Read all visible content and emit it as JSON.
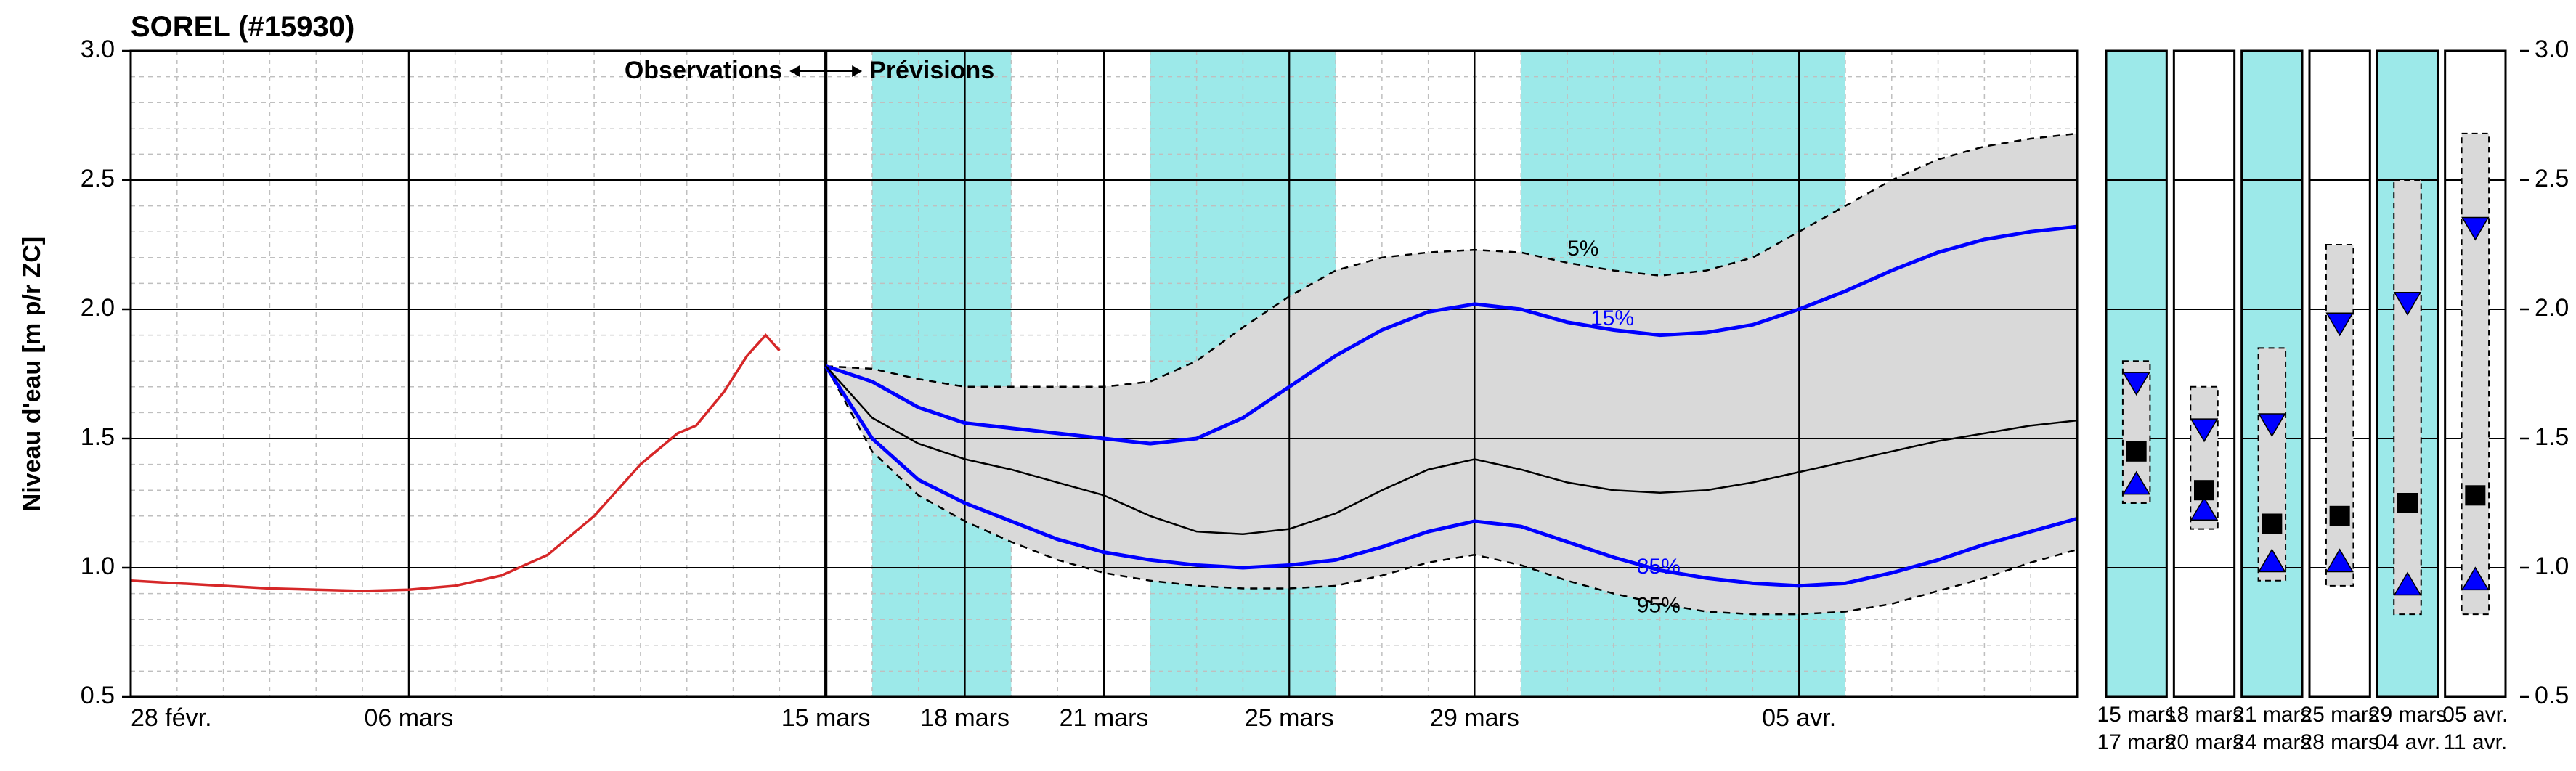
{
  "title": "SOREL (#15930)",
  "sections": {
    "obs": "Observations",
    "prev": "Prévisions"
  },
  "ylabel": "Niveau d'eau [m p/r ZC]",
  "ylim": [
    0.5,
    3.0
  ],
  "yticks": [
    0.5,
    1.0,
    1.5,
    2.0,
    2.5,
    3.0
  ],
  "y_minor_step": 0.1,
  "colors": {
    "bg": "#ffffff",
    "panel_fill": "#ffffff",
    "cyan": "#9ce9e9",
    "grid_minor": "#bfbfbf",
    "grid_major": "#000000",
    "axis": "#000000",
    "text": "#000000",
    "obs_line": "#d62728",
    "median_line": "#000000",
    "pct_line": "#0000ff",
    "band_fill": "#d9d9d9",
    "band_stroke": "#000000",
    "marker_tri": "#0000ff",
    "marker_sq": "#000000"
  },
  "fonts": {
    "title": 40,
    "section": 34,
    "axis_label": 34,
    "tick": 34,
    "tick_small": 30,
    "series_label": 30
  },
  "main": {
    "x_domain_days": 42,
    "obs_split_day": 15,
    "x_ticks": [
      {
        "day": 0,
        "label": "28 févr."
      },
      {
        "day": 6,
        "label": "06 mars"
      },
      {
        "day": 15,
        "label": "15 mars"
      },
      {
        "day": 18,
        "label": "18 mars"
      },
      {
        "day": 21,
        "label": "21 mars"
      },
      {
        "day": 25,
        "label": "25 mars"
      },
      {
        "day": 29,
        "label": "29 mars"
      },
      {
        "day": 36,
        "label": "05 avr."
      }
    ],
    "x_minor_step": 1,
    "cyan_bands": [
      [
        16,
        19
      ],
      [
        22,
        26
      ],
      [
        30,
        37
      ]
    ],
    "obs_line": [
      [
        0,
        0.95
      ],
      [
        1,
        0.94
      ],
      [
        2,
        0.93
      ],
      [
        3,
        0.92
      ],
      [
        4,
        0.915
      ],
      [
        5,
        0.91
      ],
      [
        6,
        0.915
      ],
      [
        7,
        0.93
      ],
      [
        8,
        0.97
      ],
      [
        9,
        1.05
      ],
      [
        10,
        1.2
      ],
      [
        11,
        1.4
      ],
      [
        11.8,
        1.52
      ],
      [
        12.2,
        1.55
      ],
      [
        12.8,
        1.68
      ],
      [
        13.3,
        1.82
      ],
      [
        13.7,
        1.9
      ],
      [
        14.0,
        1.84
      ]
    ],
    "p5": [
      [
        15,
        1.78
      ],
      [
        16,
        1.77
      ],
      [
        17,
        1.73
      ],
      [
        18,
        1.7
      ],
      [
        19,
        1.7
      ],
      [
        20,
        1.7
      ],
      [
        21,
        1.7
      ],
      [
        22,
        1.72
      ],
      [
        23,
        1.8
      ],
      [
        24,
        1.93
      ],
      [
        25,
        2.05
      ],
      [
        26,
        2.15
      ],
      [
        27,
        2.2
      ],
      [
        28,
        2.22
      ],
      [
        29,
        2.23
      ],
      [
        30,
        2.22
      ],
      [
        31,
        2.18
      ],
      [
        32,
        2.15
      ],
      [
        33,
        2.13
      ],
      [
        34,
        2.15
      ],
      [
        35,
        2.2
      ],
      [
        36,
        2.3
      ],
      [
        37,
        2.4
      ],
      [
        38,
        2.5
      ],
      [
        39,
        2.58
      ],
      [
        40,
        2.63
      ],
      [
        41,
        2.66
      ],
      [
        42,
        2.68
      ]
    ],
    "p15": [
      [
        15,
        1.78
      ],
      [
        16,
        1.72
      ],
      [
        17,
        1.62
      ],
      [
        18,
        1.56
      ],
      [
        19,
        1.54
      ],
      [
        20,
        1.52
      ],
      [
        21,
        1.5
      ],
      [
        22,
        1.48
      ],
      [
        23,
        1.5
      ],
      [
        24,
        1.58
      ],
      [
        25,
        1.7
      ],
      [
        26,
        1.82
      ],
      [
        27,
        1.92
      ],
      [
        28,
        1.99
      ],
      [
        29,
        2.02
      ],
      [
        30,
        2.0
      ],
      [
        31,
        1.95
      ],
      [
        32,
        1.92
      ],
      [
        33,
        1.9
      ],
      [
        34,
        1.91
      ],
      [
        35,
        1.94
      ],
      [
        36,
        2.0
      ],
      [
        37,
        2.07
      ],
      [
        38,
        2.15
      ],
      [
        39,
        2.22
      ],
      [
        40,
        2.27
      ],
      [
        41,
        2.3
      ],
      [
        42,
        2.32
      ]
    ],
    "median": [
      [
        15,
        1.78
      ],
      [
        16,
        1.58
      ],
      [
        17,
        1.48
      ],
      [
        18,
        1.42
      ],
      [
        19,
        1.38
      ],
      [
        20,
        1.33
      ],
      [
        21,
        1.28
      ],
      [
        22,
        1.2
      ],
      [
        23,
        1.14
      ],
      [
        24,
        1.13
      ],
      [
        25,
        1.15
      ],
      [
        26,
        1.21
      ],
      [
        27,
        1.3
      ],
      [
        28,
        1.38
      ],
      [
        29,
        1.42
      ],
      [
        30,
        1.38
      ],
      [
        31,
        1.33
      ],
      [
        32,
        1.3
      ],
      [
        33,
        1.29
      ],
      [
        34,
        1.3
      ],
      [
        35,
        1.33
      ],
      [
        36,
        1.37
      ],
      [
        37,
        1.41
      ],
      [
        38,
        1.45
      ],
      [
        39,
        1.49
      ],
      [
        40,
        1.52
      ],
      [
        41,
        1.55
      ],
      [
        42,
        1.57
      ]
    ],
    "p85": [
      [
        15,
        1.78
      ],
      [
        16,
        1.5
      ],
      [
        17,
        1.34
      ],
      [
        18,
        1.25
      ],
      [
        19,
        1.18
      ],
      [
        20,
        1.11
      ],
      [
        21,
        1.06
      ],
      [
        22,
        1.03
      ],
      [
        23,
        1.01
      ],
      [
        24,
        1.0
      ],
      [
        25,
        1.01
      ],
      [
        26,
        1.03
      ],
      [
        27,
        1.08
      ],
      [
        28,
        1.14
      ],
      [
        29,
        1.18
      ],
      [
        30,
        1.16
      ],
      [
        31,
        1.1
      ],
      [
        32,
        1.04
      ],
      [
        33,
        0.99
      ],
      [
        34,
        0.96
      ],
      [
        35,
        0.94
      ],
      [
        36,
        0.93
      ],
      [
        37,
        0.94
      ],
      [
        38,
        0.98
      ],
      [
        39,
        1.03
      ],
      [
        40,
        1.09
      ],
      [
        41,
        1.14
      ],
      [
        42,
        1.19
      ]
    ],
    "p95": [
      [
        15,
        1.78
      ],
      [
        16,
        1.45
      ],
      [
        17,
        1.28
      ],
      [
        18,
        1.18
      ],
      [
        19,
        1.1
      ],
      [
        20,
        1.03
      ],
      [
        21,
        0.98
      ],
      [
        22,
        0.95
      ],
      [
        23,
        0.93
      ],
      [
        24,
        0.92
      ],
      [
        25,
        0.92
      ],
      [
        26,
        0.93
      ],
      [
        27,
        0.97
      ],
      [
        28,
        1.02
      ],
      [
        29,
        1.05
      ],
      [
        30,
        1.01
      ],
      [
        31,
        0.95
      ],
      [
        32,
        0.9
      ],
      [
        33,
        0.86
      ],
      [
        34,
        0.83
      ],
      [
        35,
        0.82
      ],
      [
        36,
        0.82
      ],
      [
        37,
        0.83
      ],
      [
        38,
        0.86
      ],
      [
        39,
        0.91
      ],
      [
        40,
        0.96
      ],
      [
        41,
        1.02
      ],
      [
        42,
        1.07
      ]
    ],
    "labels": [
      {
        "text": "5%",
        "day": 31,
        "y": 2.23,
        "color": "text"
      },
      {
        "text": "15%",
        "day": 31.5,
        "y": 1.96,
        "color": "pct"
      },
      {
        "text": "85%",
        "day": 32.5,
        "y": 1.0,
        "color": "pct"
      },
      {
        "text": "95%",
        "day": 32.5,
        "y": 0.85,
        "color": "text"
      }
    ]
  },
  "panels": [
    {
      "top": "15 mars",
      "bot": "17 mars",
      "cyan": true,
      "p5": 1.8,
      "p15": 1.72,
      "mid": 1.45,
      "p85": 1.32,
      "p95": 1.25
    },
    {
      "top": "18 mars",
      "bot": "20 mars",
      "cyan": false,
      "p5": 1.7,
      "p15": 1.54,
      "mid": 1.3,
      "p85": 1.22,
      "p95": 1.15
    },
    {
      "top": "21 mars",
      "bot": "24 mars",
      "cyan": true,
      "p5": 1.85,
      "p15": 1.56,
      "mid": 1.17,
      "p85": 1.02,
      "p95": 0.95
    },
    {
      "top": "25 mars",
      "bot": "28 mars",
      "cyan": false,
      "p5": 2.25,
      "p15": 1.95,
      "mid": 1.2,
      "p85": 1.02,
      "p95": 0.93
    },
    {
      "top": "29 mars",
      "bot": "04 avr.",
      "cyan": true,
      "p5": 2.5,
      "p15": 2.03,
      "mid": 1.25,
      "p85": 0.93,
      "p95": 0.82
    },
    {
      "top": "05 avr.",
      "bot": "11 avr.",
      "cyan": false,
      "p5": 2.68,
      "p15": 2.32,
      "mid": 1.28,
      "p85": 0.95,
      "p95": 0.82
    }
  ]
}
